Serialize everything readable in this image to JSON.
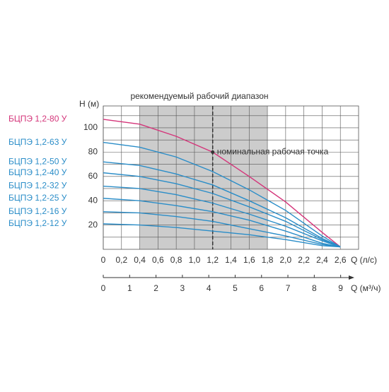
{
  "chart_data": {
    "type": "line",
    "title": "рекомендуемый рабочий диапазон",
    "y_label": "H (м)",
    "x_label": "Q (л/с)",
    "x2_label": "Q (м³/ч)",
    "x": [
      0,
      0.4,
      0.8,
      1.2,
      1.6,
      2.0,
      2.4,
      2.6
    ],
    "series": [
      {
        "name": "БЦПЭ 1,2-80 У",
        "color": "#d4357a",
        "values": [
          107,
          103,
          93,
          80,
          60,
          39,
          14,
          2
        ]
      },
      {
        "name": "БЦПЭ 1,2-63 У",
        "color": "#2a8dc8",
        "values": [
          88,
          84,
          76,
          64,
          49,
          32,
          11,
          2
        ]
      },
      {
        "name": "БЦПЭ 1,2-50 У",
        "color": "#2a8dc8",
        "values": [
          72,
          69,
          62,
          53,
          40,
          26,
          9,
          2
        ]
      },
      {
        "name": "БЦПЭ 1,2-40 У",
        "color": "#2a8dc8",
        "values": [
          63,
          60,
          54,
          46,
          35,
          23,
          8,
          2
        ]
      },
      {
        "name": "БЦПЭ 1,2-32 У",
        "color": "#2a8dc8",
        "values": [
          52,
          50,
          45,
          38,
          29,
          19,
          7,
          2
        ]
      },
      {
        "name": "БЦПЭ 1,2-25 У",
        "color": "#2a8dc8",
        "values": [
          42,
          40,
          36,
          31,
          24,
          15,
          5,
          2
        ]
      },
      {
        "name": "БЦПЭ 1,2-16 У",
        "color": "#2a8dc8",
        "values": [
          31,
          30,
          27,
          23,
          17,
          11,
          4,
          2
        ]
      },
      {
        "name": "БЦПЭ 1,2-12 У",
        "color": "#2a8dc8",
        "values": [
          21,
          20,
          18,
          15,
          12,
          8,
          3,
          2
        ]
      }
    ],
    "xlim": [
      0,
      2.8
    ],
    "ylim": [
      0,
      118
    ],
    "xticks": [
      0,
      {
        "value": 0.2,
        "label": "0,2"
      },
      {
        "value": 0.4,
        "label": "0,4"
      },
      {
        "value": 0.6,
        "label": "0,6"
      },
      {
        "value": 0.8,
        "label": "0,8"
      },
      {
        "value": 1.0,
        "label": "1,0"
      },
      {
        "value": 1.2,
        "label": "1,2"
      },
      {
        "value": 1.4,
        "label": "1,4"
      },
      {
        "value": 1.6,
        "label": "1,6"
      },
      {
        "value": 1.8,
        "label": "1,8"
      },
      {
        "value": 2.0,
        "label": "2,0"
      },
      {
        "value": 2.2,
        "label": "2,2"
      },
      {
        "value": 2.4,
        "label": "2,4"
      },
      {
        "value": 2.6,
        "label": "2,6"
      }
    ],
    "yticks": [
      20,
      40,
      60,
      80,
      100
    ],
    "minor_yticks": [
      10,
      30,
      50,
      70,
      90,
      110
    ],
    "x2lim": [
      0,
      9.68
    ],
    "x2ticks": [
      0,
      1,
      2,
      3,
      4,
      5,
      6,
      7,
      8,
      9
    ],
    "range": [
      0.4,
      1.8
    ],
    "range_color": "#cccccc",
    "point": {
      "x": 1.2,
      "y": 80,
      "label": "номинальная рабочая точка"
    },
    "grid": true
  }
}
